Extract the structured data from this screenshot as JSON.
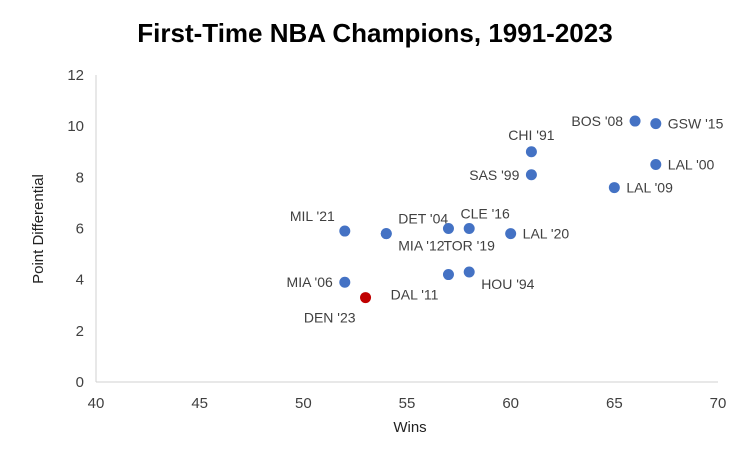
{
  "chart_data": {
    "type": "scatter",
    "title": "First-Time NBA Champions, 1991-2023",
    "xlabel": "Wins",
    "ylabel": "Point Differential",
    "xlim": [
      40,
      70
    ],
    "ylim": [
      0,
      12
    ],
    "xticks": [
      "40",
      "45",
      "50",
      "55",
      "60",
      "65",
      "70"
    ],
    "yticks": [
      "0",
      "2",
      "4",
      "6",
      "8",
      "10",
      "12"
    ],
    "grid": false,
    "colors": {
      "default": "#4472C4",
      "highlight": "#C00000"
    },
    "points": [
      {
        "label": "BOS '08",
        "x": 66,
        "y": 10.2,
        "color": "default",
        "pos": "left"
      },
      {
        "label": "GSW '15",
        "x": 67,
        "y": 10.1,
        "color": "default",
        "pos": "right"
      },
      {
        "label": "CHI '91",
        "x": 61,
        "y": 9.0,
        "color": "default",
        "pos": "top"
      },
      {
        "label": "LAL '00",
        "x": 67,
        "y": 8.5,
        "color": "default",
        "pos": "right"
      },
      {
        "label": "SAS '99",
        "x": 61,
        "y": 8.1,
        "color": "default",
        "pos": "left"
      },
      {
        "label": "LAL '09",
        "x": 65,
        "y": 7.6,
        "color": "default",
        "pos": "right"
      },
      {
        "label": "MIL '21",
        "x": 52,
        "y": 5.9,
        "color": "default",
        "pos": "topleft"
      },
      {
        "label": "DET '04",
        "x": 54,
        "y": 5.8,
        "color": "default",
        "pos": "topright"
      },
      {
        "label": "MIA '12",
        "x": 54,
        "y": 5.8,
        "color": "default",
        "pos": "bottomright"
      },
      {
        "label": "CLE '16",
        "x": 57,
        "y": 6.0,
        "color": "default",
        "pos": "topright"
      },
      {
        "label": "TOR '19",
        "x": 58,
        "y": 6.0,
        "color": "default",
        "pos": "bottom"
      },
      {
        "label": "LAL '20",
        "x": 60,
        "y": 5.8,
        "color": "default",
        "pos": "right"
      },
      {
        "label": "MIA '06",
        "x": 52,
        "y": 3.9,
        "color": "default",
        "pos": "left"
      },
      {
        "label": "DAL '11",
        "x": 57,
        "y": 4.2,
        "color": "default",
        "pos": "bottomleft"
      },
      {
        "label": "HOU '94",
        "x": 58,
        "y": 4.3,
        "color": "default",
        "pos": "bottomright"
      },
      {
        "label": "DEN '23",
        "x": 53,
        "y": 3.3,
        "color": "highlight",
        "pos": "bottomleft"
      }
    ]
  }
}
